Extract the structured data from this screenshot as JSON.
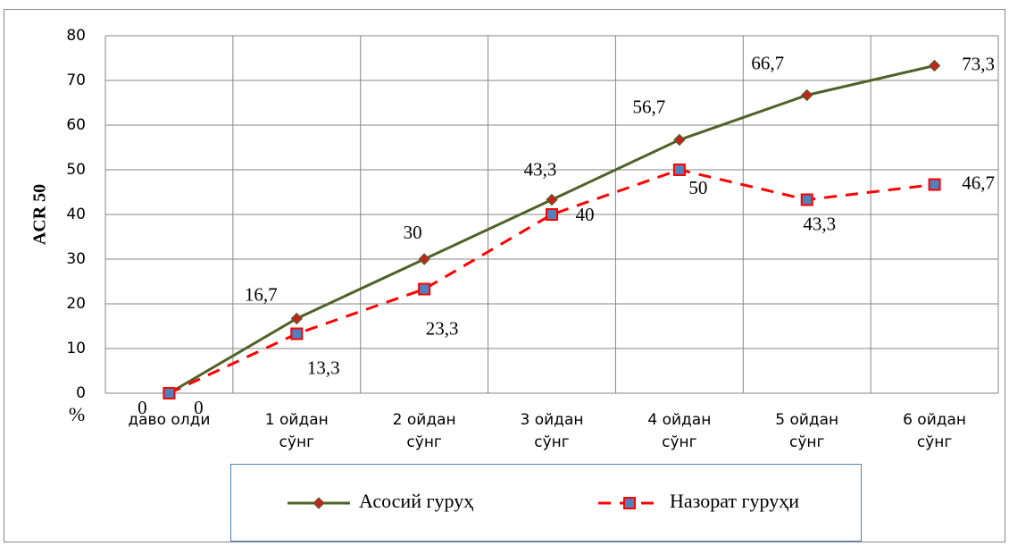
{
  "chart_data": {
    "type": "line",
    "y_label": "ACR 50",
    "y_unit": "%",
    "categories": [
      [
        "даво олди"
      ],
      [
        "1 ойдан",
        "сўнг"
      ],
      [
        "2 ойдан",
        "сўнг"
      ],
      [
        "3 ойдан",
        "сўнг"
      ],
      [
        "4 ойдан",
        "сўнг"
      ],
      [
        "5 ойдан",
        "сўнг"
      ],
      [
        "6 ойдан",
        "сўнг"
      ]
    ],
    "series": [
      {
        "name": "Асосий гуруҳ",
        "color": "#4f6228",
        "marker_color": "#c0261c",
        "marker": "diamond",
        "dash": false,
        "values": [
          0,
          16.7,
          30,
          43.3,
          56.7,
          66.7,
          73.3
        ],
        "value_labels": [
          "0",
          "16,7",
          "30",
          "43,3",
          "56,7",
          "66,7",
          "73,3"
        ]
      },
      {
        "name": "Назорат гуруҳи",
        "color": "#ff0000",
        "marker_color": "#4f81bd",
        "marker": "square",
        "dash": true,
        "values": [
          0,
          13.3,
          23.3,
          40,
          50,
          43.3,
          46.7
        ],
        "value_labels": [
          "0",
          "13,3",
          "23,3",
          "40",
          "50",
          "43,3",
          "46,7"
        ]
      }
    ],
    "ylim": [
      0,
      80
    ],
    "yticks": [
      0,
      10,
      20,
      30,
      40,
      50,
      60,
      70,
      80
    ],
    "grid": true
  }
}
